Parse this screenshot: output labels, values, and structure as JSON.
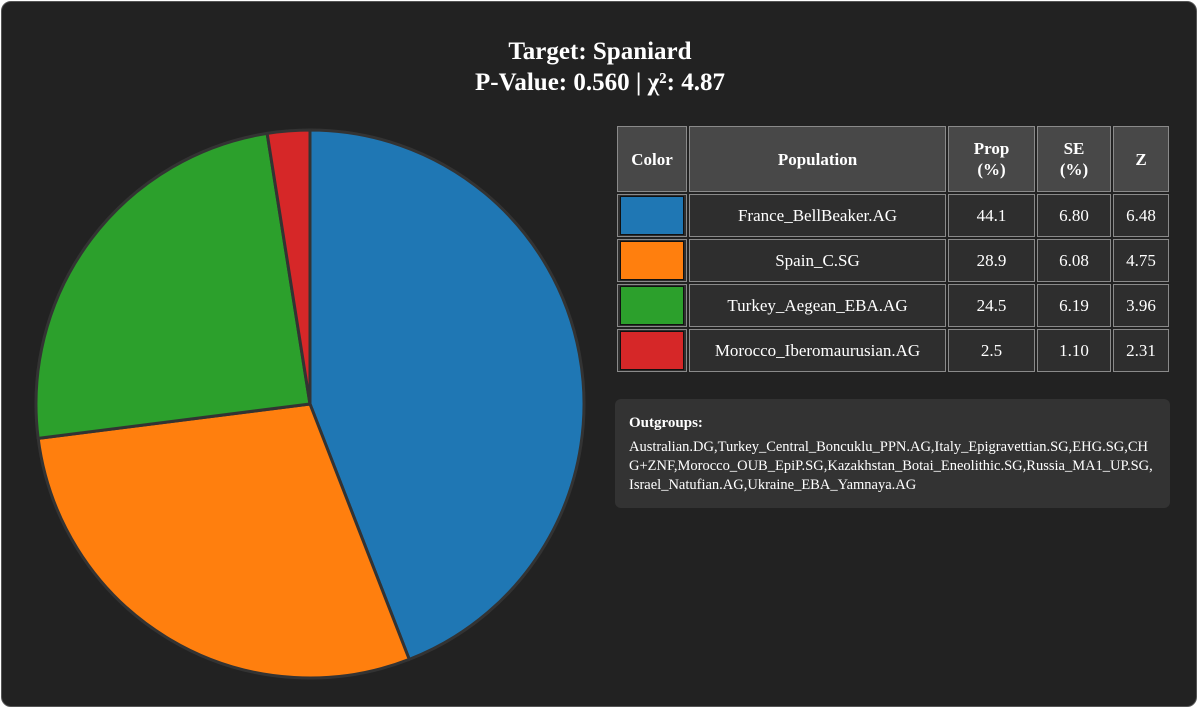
{
  "chart_data": {
    "type": "pie",
    "title": "Target: Spaniard",
    "subtitle": "P-Value: 0.560 | χ²: 4.87",
    "slices": [
      {
        "label": "France_BellBeaker.AG",
        "value": 44.1,
        "se": "6.80",
        "z": "6.48",
        "prop_text": "44.1",
        "color": "#1f77b4"
      },
      {
        "label": "Spain_C.SG",
        "value": 28.9,
        "se": "6.08",
        "z": "4.75",
        "prop_text": "28.9",
        "color": "#ff7f0e"
      },
      {
        "label": "Turkey_Aegean_EBA.AG",
        "value": 24.5,
        "se": "6.19",
        "z": "3.96",
        "prop_text": "24.5",
        "color": "#2ca02c"
      },
      {
        "label": "Morocco_Iberomaurusian.AG",
        "value": 2.5,
        "se": "1.10",
        "z": "2.31",
        "prop_text": "2.5",
        "color": "#d62728"
      }
    ],
    "start_angle": "12 o'clock",
    "direction": "clockwise"
  },
  "table": {
    "headers": {
      "color": "Color",
      "population": "Population",
      "prop_line1": "Prop",
      "prop_line2": "(%)",
      "se_line1": "SE",
      "se_line2": "(%)",
      "z": "Z"
    }
  },
  "outgroups": {
    "label": "Outgroups:",
    "text": "Australian.DG,Turkey_Central_Boncuklu_PPN.AG,Italy_Epigravettian.SG,EHG.SG,CHG+ZNF,Morocco_OUB_EpiP.SG,Kazakhstan_Botai_Eneolithic.SG,Russia_MA1_UP.SG,Israel_Natufian.AG,Ukraine_EBA_Yamnaya.AG"
  },
  "colors": {
    "background": "#222222",
    "slice_edge": "#333333"
  }
}
